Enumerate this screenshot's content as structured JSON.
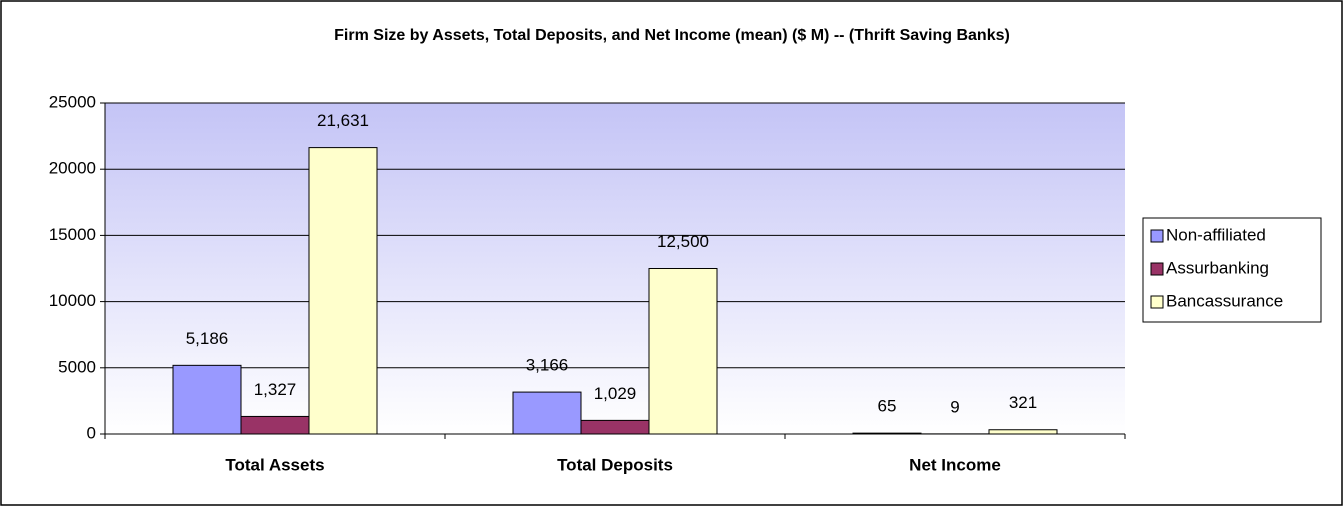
{
  "chart_data": {
    "type": "bar",
    "title": "Firm Size by Assets, Total Deposits, and Net Income (mean)  ($ M) -- (Thrift Saving Banks)",
    "categories": [
      "Total Assets",
      "Total Deposits",
      "Net Income"
    ],
    "series": [
      {
        "name": "Non-affiliated",
        "color": "#9999ff",
        "values": [
          5186,
          3166,
          65
        ],
        "value_labels": [
          "5,186",
          "3,166",
          "65"
        ]
      },
      {
        "name": "Assurbanking",
        "color": "#993366",
        "values": [
          1327,
          1029,
          9
        ],
        "value_labels": [
          "1,327",
          "1,029",
          "9"
        ]
      },
      {
        "name": "Bancassurance",
        "color": "#ffffcc",
        "values": [
          21631,
          12500,
          321
        ],
        "value_labels": [
          "21,631",
          "12,500",
          "321"
        ]
      }
    ],
    "ylim": [
      0,
      25000
    ],
    "yticks": [
      0,
      5000,
      10000,
      15000,
      20000,
      25000
    ],
    "grid": true,
    "legend": "right"
  }
}
